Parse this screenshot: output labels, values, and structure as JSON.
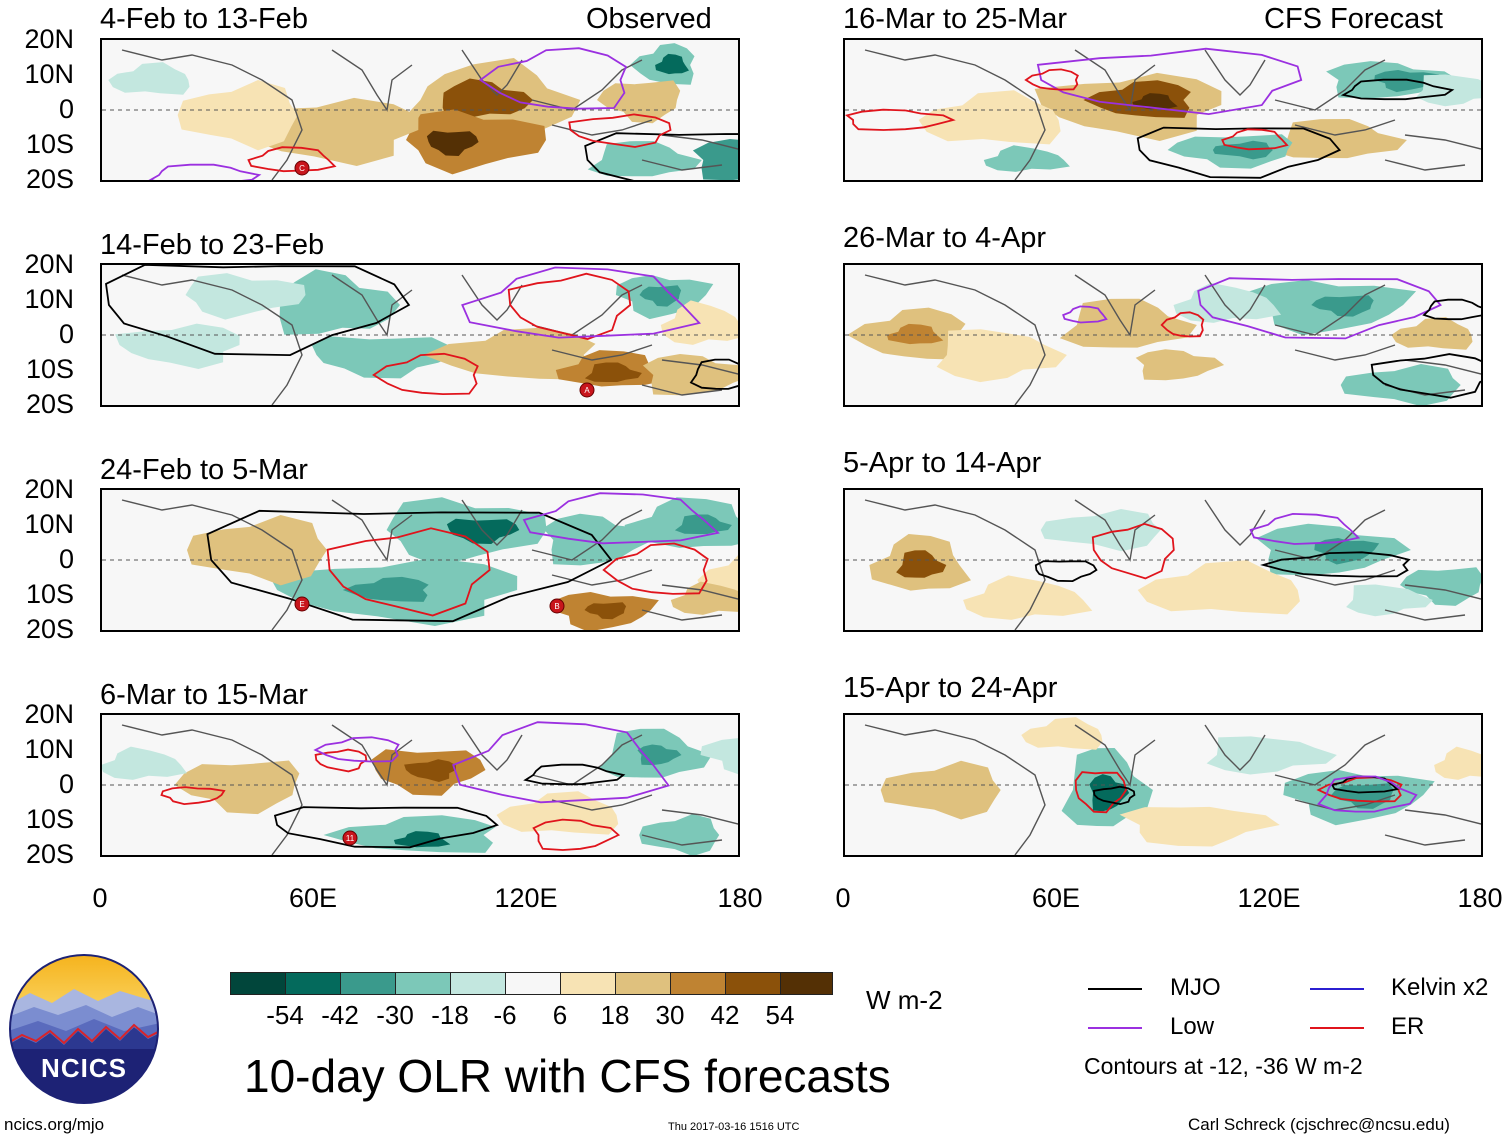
{
  "lat_labels": [
    "20N",
    "10N",
    "0",
    "10S",
    "20S"
  ],
  "lon_labels": [
    "0",
    "60E",
    "120E",
    "180"
  ],
  "left_column": {
    "panels": [
      {
        "title": "4-Feb to 13-Feb",
        "tag": "Observed"
      },
      {
        "title": "14-Feb to 23-Feb",
        "tag": ""
      },
      {
        "title": "24-Feb to 5-Mar",
        "tag": ""
      },
      {
        "title": "6-Mar to 15-Mar",
        "tag": ""
      }
    ]
  },
  "right_column": {
    "panels": [
      {
        "title": "16-Mar to 25-Mar",
        "tag": "CFS Forecast"
      },
      {
        "title": "26-Mar to 4-Apr",
        "tag": ""
      },
      {
        "title": "5-Apr to 14-Apr",
        "tag": ""
      },
      {
        "title": "15-Apr to 24-Apr",
        "tag": ""
      }
    ]
  },
  "storm_markers": [
    "C",
    "A",
    "E",
    "B",
    "11"
  ],
  "colorbar": {
    "colors": [
      "#01463b",
      "#046a5c",
      "#3a9a8c",
      "#7cc8b8",
      "#c3e7df",
      "#f7f7f7",
      "#f7e3b4",
      "#dfc17e",
      "#bf8332",
      "#8b510a",
      "#543005"
    ],
    "ticks": [
      "-54",
      "-42",
      "-30",
      "-18",
      "-6",
      "6",
      "18",
      "30",
      "42",
      "54"
    ],
    "units": "W m-2"
  },
  "legend": {
    "items": [
      {
        "label": "MJO",
        "color": "#000000"
      },
      {
        "label": "Kelvin x2",
        "color": "#2b1fd1"
      },
      {
        "label": "Low",
        "color": "#9b30e0"
      },
      {
        "label": "ER",
        "color": "#e0141c"
      }
    ],
    "note": "Contours at -12, -36 W m-2"
  },
  "main_title": "10-day OLR with CFS forecasts",
  "logo": {
    "text": "NCICS"
  },
  "footer": {
    "url": "ncics.org/mjo",
    "timestamp": "Thu 2017-03-16 1516 UTC",
    "credit": "Carl Schreck (cjschrec@ncsu.edu)"
  }
}
